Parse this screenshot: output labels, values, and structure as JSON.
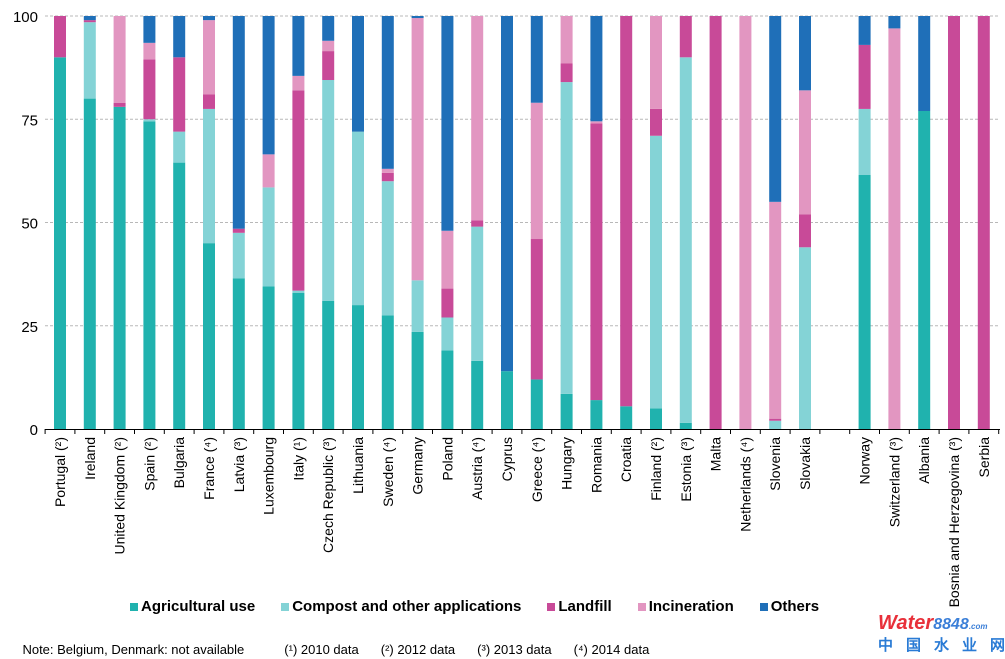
{
  "chart_data": {
    "type": "bar",
    "stacked": true,
    "title": "",
    "xlabel": "",
    "ylabel": "",
    "ylim": [
      0,
      100
    ],
    "yticks": [
      0,
      25,
      50,
      75,
      100
    ],
    "grid": true,
    "legend_placement": "bottom",
    "categories": [
      "Portugal (²)",
      "Ireland",
      "United Kingdom (²)",
      "Spain (²)",
      "Bulgaria",
      "France (⁴)",
      "Latvia (³)",
      "Luxembourg",
      "Italy (¹)",
      "Czech Republic (³)",
      "Lithuania",
      "Sweden (⁴)",
      "Germany",
      "Poland",
      "Austria (⁴)",
      "Cyprus",
      "Greece (⁴)",
      "Hungary",
      "Romania",
      "Croatia",
      "Finland (²)",
      "Estonia (³)",
      "Malta",
      "Netherlands (⁴)",
      "Slovenia",
      "Slovakia",
      "Norway",
      "Switzerland (³)",
      "Albania",
      "Bosnia and Herzegovina (³)",
      "Serbia"
    ],
    "series": [
      {
        "name": "Agricultural use",
        "color": "#20b2ae",
        "values": [
          90,
          80,
          78,
          74.5,
          64.5,
          45,
          36.5,
          34.5,
          33,
          31,
          30,
          27.5,
          23.5,
          19,
          16.5,
          14,
          12,
          8.5,
          7,
          5.5,
          5,
          1.5,
          0,
          0,
          0,
          0,
          61.5,
          0,
          77,
          0,
          0
        ]
      },
      {
        "name": "Compost and other applications",
        "color": "#84d3d6",
        "values": [
          0,
          18.5,
          0,
          0.5,
          7.5,
          32.5,
          11,
          24,
          0.5,
          53.5,
          42,
          32.5,
          12.5,
          8,
          32.5,
          0,
          0,
          75.5,
          0,
          0,
          66,
          88.5,
          0,
          0,
          2,
          44,
          16,
          0,
          0,
          0,
          0
        ]
      },
      {
        "name": "Landfill",
        "color": "#c84a98",
        "values": [
          10,
          0.5,
          1,
          14.5,
          18,
          3.5,
          1,
          0,
          48.5,
          7,
          0,
          2,
          0,
          7,
          1.5,
          0,
          34,
          4.5,
          67,
          94.5,
          6.5,
          10,
          100,
          0,
          0.5,
          8,
          15.5,
          0,
          0,
          100,
          100
        ]
      },
      {
        "name": "Incineration",
        "color": "#e296c1",
        "values": [
          0,
          0,
          21,
          4,
          0,
          18,
          0,
          8,
          3.5,
          2.5,
          0,
          1,
          63.5,
          14,
          49.5,
          0,
          33,
          11.5,
          0.5,
          0,
          22.5,
          0,
          0,
          100,
          52.5,
          30,
          0,
          97,
          0,
          0,
          0
        ]
      },
      {
        "name": "Others",
        "color": "#1f6fb8",
        "values": [
          0,
          1,
          0,
          6.5,
          10,
          1,
          51.5,
          33.5,
          14.5,
          6,
          28,
          37,
          0.5,
          52,
          0,
          86,
          21,
          0,
          25.5,
          0,
          0,
          0,
          0,
          0,
          45,
          18,
          7,
          3,
          23,
          0,
          0
        ]
      }
    ]
  },
  "notes": {
    "availability": "Note: Belgium, Denmark: not available",
    "footnotes": [
      "(¹) 2010 data",
      "(²) 2012 data",
      "(³) 2013 data",
      "(⁴) 2014 data"
    ]
  },
  "watermark": {
    "brand_a": "Water",
    "brand_b": "8848",
    "domain": ".com",
    "chinese": "中国水业网"
  }
}
